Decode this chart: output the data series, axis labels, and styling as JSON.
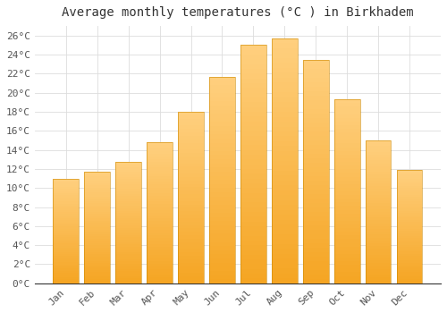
{
  "months": [
    "Jan",
    "Feb",
    "Mar",
    "Apr",
    "May",
    "Jun",
    "Jul",
    "Aug",
    "Sep",
    "Oct",
    "Nov",
    "Dec"
  ],
  "temperatures": [
    11.0,
    11.7,
    12.7,
    14.8,
    18.0,
    21.7,
    25.0,
    25.7,
    23.4,
    19.3,
    15.0,
    11.9
  ],
  "bar_color_bottom": "#F5A623",
  "bar_color_top": "#FFD080",
  "title": "Average monthly temperatures (°C ) in Birkhadem",
  "ylim": [
    0,
    27
  ],
  "ytick_max": 26,
  "ytick_step": 2,
  "background_color": "#ffffff",
  "grid_color": "#dddddd",
  "title_fontsize": 10,
  "tick_fontsize": 8,
  "font_family": "monospace",
  "bar_width": 0.82
}
